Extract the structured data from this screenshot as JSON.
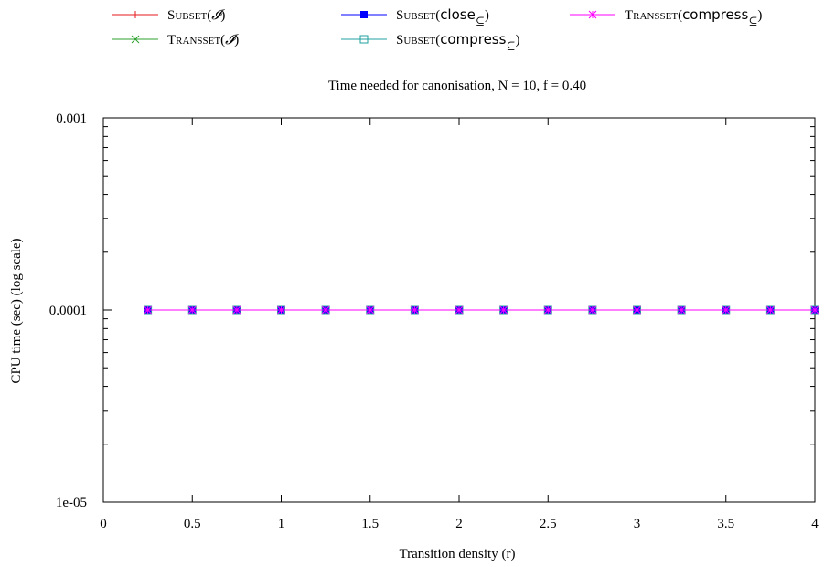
{
  "chart_data": {
    "type": "line",
    "title": "Time needed for canonisation, N = 10, f = 0.40",
    "xlabel": "Transition density (r)",
    "ylabel": "CPU time (sec) (log scale)",
    "xlim": [
      0,
      4
    ],
    "ylim": [
      1e-05,
      0.001
    ],
    "yscale": "log",
    "grid": false,
    "legend_position": "top",
    "x_ticks": [
      "0",
      "0.5",
      "1",
      "1.5",
      "2",
      "2.5",
      "3",
      "3.5",
      "4"
    ],
    "y_ticks": [
      "1e-05",
      "0.0001",
      "0.001"
    ],
    "x": [
      0.25,
      0.5,
      0.75,
      1.0,
      1.25,
      1.5,
      1.75,
      2.0,
      2.25,
      2.5,
      2.75,
      3.0,
      3.25,
      3.5,
      3.75,
      4.0
    ],
    "series": [
      {
        "name": "SUBSET(I)",
        "marker": "plus",
        "color": "#e41a1c",
        "values": [
          0.0001,
          0.0001,
          0.0001,
          0.0001,
          0.0001,
          0.0001,
          0.0001,
          0.0001,
          0.0001,
          0.0001,
          0.0001,
          0.0001,
          0.0001,
          0.0001,
          0.0001,
          0.0001
        ]
      },
      {
        "name": "TRANSSET(I)",
        "marker": "cross",
        "color": "#2ca02c",
        "values": [
          0.0001,
          0.0001,
          0.0001,
          0.0001,
          0.0001,
          0.0001,
          0.0001,
          0.0001,
          0.0001,
          0.0001,
          0.0001,
          0.0001,
          0.0001,
          0.0001,
          0.0001,
          0.0001
        ]
      },
      {
        "name": "SUBSET(close⊆)",
        "marker": "filled-square",
        "color": "#0000ff",
        "values": [
          0.0001,
          0.0001,
          0.0001,
          0.0001,
          0.0001,
          0.0001,
          0.0001,
          0.0001,
          0.0001,
          0.0001,
          0.0001,
          0.0001,
          0.0001,
          0.0001,
          0.0001,
          0.0001
        ]
      },
      {
        "name": "SUBSET(compress⊆)",
        "marker": "open-square",
        "color": "#20a0a0",
        "values": [
          0.0001,
          0.0001,
          0.0001,
          0.0001,
          0.0001,
          0.0001,
          0.0001,
          0.0001,
          0.0001,
          0.0001,
          0.0001,
          0.0001,
          0.0001,
          0.0001,
          0.0001,
          0.0001
        ]
      },
      {
        "name": "TRANSSET(compress⊆)",
        "marker": "star",
        "color": "#ff00ff",
        "values": [
          0.0001,
          0.0001,
          0.0001,
          0.0001,
          0.0001,
          0.0001,
          0.0001,
          0.0001,
          0.0001,
          0.0001,
          0.0001,
          0.0001,
          0.0001,
          0.0001,
          0.0001,
          0.0001
        ]
      }
    ]
  },
  "legend": [
    {
      "word": "Subset",
      "arg": "𝓘",
      "sub": ""
    },
    {
      "word": "Transset",
      "arg": "𝓘",
      "sub": ""
    },
    {
      "word": "Subset",
      "arg": "close",
      "sub": "⊆"
    },
    {
      "word": "Subset",
      "arg": "compress",
      "sub": "⊆"
    },
    {
      "word": "Transset",
      "arg": "compress",
      "sub": "⊆"
    }
  ]
}
